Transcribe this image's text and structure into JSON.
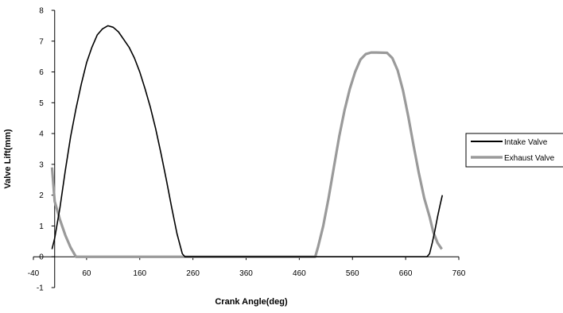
{
  "chart_data": {
    "type": "line",
    "title": "",
    "xlabel": "Crank Angle(deg)",
    "ylabel": "Valve Lift(mm)",
    "xlim": [
      -40,
      760
    ],
    "ylim": [
      -1,
      8
    ],
    "x_ticks": [
      -40,
      60,
      160,
      260,
      360,
      460,
      560,
      660,
      760
    ],
    "y_ticks": [
      -1,
      0,
      1,
      2,
      3,
      4,
      5,
      6,
      7,
      8
    ],
    "grid": false,
    "legend_position": "right",
    "colors": {
      "intake": "#000000",
      "exhaust": "#9a9a9a"
    },
    "series": [
      {
        "name": "Intake Valve",
        "points": [
          [
            -5,
            0.25
          ],
          [
            0,
            0.6
          ],
          [
            10,
            1.6
          ],
          [
            20,
            2.8
          ],
          [
            30,
            3.9
          ],
          [
            40,
            4.8
          ],
          [
            50,
            5.6
          ],
          [
            60,
            6.3
          ],
          [
            70,
            6.8
          ],
          [
            80,
            7.2
          ],
          [
            90,
            7.4
          ],
          [
            100,
            7.5
          ],
          [
            110,
            7.45
          ],
          [
            120,
            7.3
          ],
          [
            130,
            7.05
          ],
          [
            140,
            6.8
          ],
          [
            150,
            6.45
          ],
          [
            160,
            6.0
          ],
          [
            170,
            5.45
          ],
          [
            180,
            4.85
          ],
          [
            190,
            4.15
          ],
          [
            200,
            3.35
          ],
          [
            210,
            2.5
          ],
          [
            220,
            1.6
          ],
          [
            230,
            0.75
          ],
          [
            240,
            0.1
          ],
          [
            245,
            0
          ],
          [
            480,
            0
          ],
          [
            600,
            0
          ],
          [
            700,
            0
          ],
          [
            705,
            0.1
          ],
          [
            710,
            0.45
          ],
          [
            715,
            0.85
          ],
          [
            720,
            1.3
          ],
          [
            725,
            1.7
          ],
          [
            729,
            2.0
          ]
        ]
      },
      {
        "name": "Exhaust Valve",
        "points": [
          [
            -5,
            2.9
          ],
          [
            0,
            1.8
          ],
          [
            10,
            1.2
          ],
          [
            20,
            0.7
          ],
          [
            30,
            0.3
          ],
          [
            40,
            0
          ],
          [
            200,
            0
          ],
          [
            400,
            0
          ],
          [
            490,
            0
          ],
          [
            495,
            0.3
          ],
          [
            505,
            1.0
          ],
          [
            515,
            1.9
          ],
          [
            525,
            2.9
          ],
          [
            535,
            3.9
          ],
          [
            545,
            4.75
          ],
          [
            555,
            5.45
          ],
          [
            565,
            6.0
          ],
          [
            575,
            6.4
          ],
          [
            585,
            6.58
          ],
          [
            595,
            6.63
          ],
          [
            605,
            6.63
          ],
          [
            625,
            6.62
          ],
          [
            635,
            6.45
          ],
          [
            645,
            6.05
          ],
          [
            655,
            5.4
          ],
          [
            665,
            4.55
          ],
          [
            675,
            3.6
          ],
          [
            685,
            2.7
          ],
          [
            695,
            1.9
          ],
          [
            705,
            1.3
          ],
          [
            712,
            0.8
          ],
          [
            720,
            0.45
          ],
          [
            728,
            0.25
          ]
        ]
      }
    ]
  }
}
